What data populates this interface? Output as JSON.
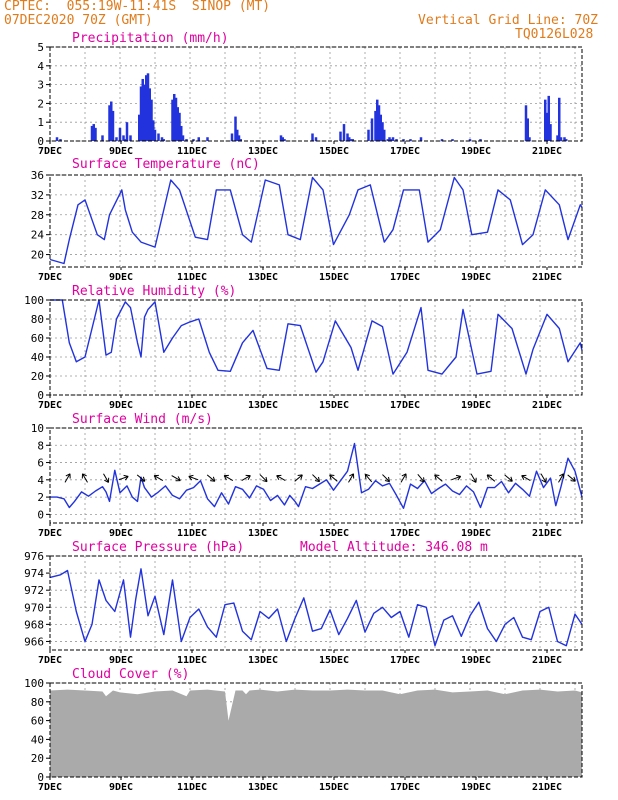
{
  "header": {
    "line1": "CPTEC:  055:19W-11:41S  SINOP (MT)",
    "line2": "07DEC2020 70Z (GMT)",
    "right1": "Vertical Grid Line: 70Z",
    "right2": "TQ0126L028"
  },
  "colors": {
    "header": "#e07b1c",
    "title": "#e000a0",
    "series": "#2233dd",
    "cloud": "#aaaaaa",
    "grid": "#999999",
    "arrow": "#000000"
  },
  "date_labels": [
    "7DEC",
    "9DEC",
    "11DEC",
    "13DEC",
    "15DEC",
    "17DEC",
    "19DEC",
    "21DEC"
  ],
  "chart_data": [
    {
      "id": "precip",
      "type": "bar",
      "title": "Precipitation (mm/h)",
      "ylim": [
        0,
        5
      ],
      "yticks": [
        0,
        1,
        2,
        3,
        4,
        5
      ],
      "xlim": [
        0,
        15.2
      ],
      "x": [
        0.2,
        0.3,
        1.2,
        1.25,
        1.3,
        1.5,
        1.7,
        1.75,
        1.8,
        1.9,
        2.0,
        2.1,
        2.15,
        2.2,
        2.3,
        2.55,
        2.6,
        2.65,
        2.7,
        2.75,
        2.8,
        2.85,
        2.9,
        2.95,
        3.0,
        3.1,
        3.2,
        3.25,
        3.5,
        3.55,
        3.6,
        3.65,
        3.7,
        3.75,
        3.8,
        3.9,
        4.1,
        4.25,
        4.5,
        5.2,
        5.3,
        5.35,
        5.4,
        5.45,
        6.6,
        6.65,
        6.7,
        7.5,
        7.6,
        8.3,
        8.4,
        8.5,
        8.55,
        8.6,
        8.65,
        9.1,
        9.2,
        9.3,
        9.35,
        9.4,
        9.45,
        9.5,
        9.55,
        9.65,
        9.7,
        9.75,
        9.8,
        9.9,
        10.1,
        10.3,
        10.6,
        11.2,
        11.5,
        12.0,
        12.3,
        13.6,
        13.65,
        13.7,
        14.15,
        14.2,
        14.25,
        14.3,
        14.5,
        14.55,
        14.6,
        14.7,
        14.75
      ],
      "values": [
        0.2,
        0.1,
        0.8,
        0.9,
        0.7,
        0.3,
        1.9,
        2.1,
        1.6,
        0.2,
        0.7,
        0.3,
        0.1,
        1.0,
        0.3,
        1.4,
        2.9,
        3.3,
        3.0,
        3.5,
        3.6,
        2.8,
        2.2,
        1.1,
        0.6,
        0.4,
        0.2,
        0.1,
        2.2,
        2.5,
        2.3,
        1.8,
        1.5,
        0.8,
        0.3,
        0.1,
        0.1,
        0.2,
        0.2,
        0.4,
        1.3,
        0.6,
        0.3,
        0.1,
        0.3,
        0.2,
        0.1,
        0.4,
        0.2,
        0.5,
        0.9,
        0.4,
        0.2,
        0.1,
        0.1,
        0.6,
        1.2,
        1.6,
        2.2,
        1.9,
        1.4,
        1.0,
        0.6,
        0.1,
        0.2,
        0.1,
        0.2,
        0.1,
        0.1,
        0.1,
        0.2,
        0.1,
        0.1,
        0.1,
        0.1,
        1.9,
        1.2,
        0.2,
        2.2,
        1.5,
        2.4,
        0.9,
        0.3,
        2.3,
        0.2,
        0.2,
        0.1
      ]
    },
    {
      "id": "temp",
      "type": "line",
      "title": "Surface Temperature (nC)",
      "ylim": [
        17.5,
        36
      ],
      "yticks": [
        20,
        24,
        28,
        32,
        36
      ],
      "xlim": [
        0,
        15.2
      ],
      "x": [
        0,
        0.4,
        0.55,
        0.8,
        1.0,
        1.35,
        1.55,
        1.7,
        2.05,
        2.15,
        2.35,
        2.6,
        3.0,
        3.45,
        3.7,
        4.15,
        4.5,
        4.75,
        5.15,
        5.5,
        5.75,
        6.15,
        6.55,
        6.8,
        7.15,
        7.5,
        7.8,
        8.1,
        8.55,
        8.8,
        9.15,
        9.55,
        9.8,
        10.1,
        10.55,
        10.8,
        11.15,
        11.55,
        11.8,
        12.05,
        12.5,
        12.8,
        13.15,
        13.5,
        13.8,
        14.15,
        14.55,
        14.8,
        15.15,
        15.2
      ],
      "values": [
        19,
        18.2,
        23,
        30,
        31,
        24,
        23,
        28,
        33,
        29,
        24.5,
        22.5,
        21.5,
        35,
        33,
        23.5,
        23,
        33,
        33,
        24,
        22.5,
        35,
        34,
        24,
        23,
        35.5,
        33,
        22,
        28,
        33,
        34,
        22.5,
        25,
        33,
        33,
        22.5,
        25,
        35.5,
        33,
        24,
        24.5,
        33,
        31,
        22,
        24,
        33,
        30,
        23,
        30,
        29.5
      ]
    },
    {
      "id": "rh",
      "type": "line",
      "title": "Relative Humidity (%)",
      "ylim": [
        0,
        100
      ],
      "yticks": [
        0,
        20,
        40,
        60,
        80,
        100
      ],
      "xlim": [
        0,
        15.2
      ],
      "x": [
        0,
        0.35,
        0.55,
        0.75,
        1.0,
        1.4,
        1.6,
        1.75,
        1.9,
        2.15,
        2.3,
        2.5,
        2.6,
        2.7,
        2.8,
        3.0,
        3.25,
        3.5,
        3.75,
        4.0,
        4.25,
        4.55,
        4.8,
        5.15,
        5.5,
        5.8,
        6.2,
        6.55,
        6.8,
        7.15,
        7.6,
        7.8,
        8.15,
        8.6,
        8.8,
        9.2,
        9.5,
        9.8,
        10.2,
        10.6,
        10.8,
        11.2,
        11.6,
        11.8,
        12.2,
        12.6,
        12.8,
        13.2,
        13.6,
        13.8,
        14.2,
        14.55,
        14.8,
        15.15,
        15.2
      ],
      "values": [
        100,
        100,
        55,
        35,
        40,
        100,
        42,
        45,
        80,
        98,
        92,
        55,
        40,
        82,
        90,
        98,
        45,
        60,
        73,
        77,
        80,
        45,
        26,
        25,
        55,
        68,
        28,
        26,
        75,
        73,
        24,
        35,
        78,
        50,
        26,
        78,
        72,
        22,
        45,
        92,
        26,
        22,
        40,
        90,
        22,
        25,
        85,
        70,
        22,
        48,
        85,
        70,
        35,
        55,
        47
      ]
    },
    {
      "id": "wind",
      "type": "line",
      "title": "Surface Wind (m/s)",
      "ylim": [
        -1,
        10
      ],
      "yticks": [
        0,
        2,
        4,
        6,
        8,
        10
      ],
      "xlim": [
        0,
        15.2
      ],
      "x": [
        0,
        0.2,
        0.4,
        0.55,
        0.7,
        0.9,
        1.1,
        1.3,
        1.5,
        1.6,
        1.7,
        1.85,
        2.0,
        2.2,
        2.35,
        2.5,
        2.6,
        2.7,
        2.9,
        3.1,
        3.3,
        3.5,
        3.7,
        3.9,
        4.1,
        4.3,
        4.5,
        4.7,
        4.9,
        5.1,
        5.3,
        5.5,
        5.7,
        5.9,
        6.1,
        6.3,
        6.5,
        6.7,
        6.85,
        7.0,
        7.1,
        7.3,
        7.5,
        7.7,
        7.9,
        8.1,
        8.3,
        8.5,
        8.7,
        8.9,
        9.1,
        9.3,
        9.5,
        9.7,
        9.9,
        10.1,
        10.3,
        10.5,
        10.7,
        10.9,
        11.1,
        11.3,
        11.5,
        11.7,
        11.9,
        12.1,
        12.3,
        12.5,
        12.7,
        12.9,
        13.1,
        13.3,
        13.5,
        13.7,
        13.9,
        14.1,
        14.3,
        14.45,
        14.6,
        14.8,
        15.0,
        15.2
      ],
      "values": [
        2,
        2,
        1.8,
        0.8,
        1.5,
        2.6,
        2.1,
        2.7,
        3.2,
        2.6,
        1.5,
        5.1,
        2.5,
        3.3,
        2.0,
        1.5,
        4.3,
        3.1,
        2.0,
        2.6,
        3.3,
        2.2,
        1.8,
        2.8,
        3.1,
        3.9,
        1.8,
        0.9,
        2.5,
        1.2,
        3.2,
        2.9,
        1.9,
        3.3,
        2.9,
        1.6,
        2.2,
        1.1,
        2.2,
        1.5,
        0.9,
        3.2,
        3.0,
        3.5,
        4.0,
        2.8,
        3.9,
        5.0,
        8.2,
        2.5,
        2.9,
        3.9,
        3.3,
        3.6,
        2.2,
        0.7,
        3.5,
        3.0,
        3.9,
        2.4,
        3.0,
        3.5,
        2.7,
        2.3,
        3.3,
        2.6,
        0.8,
        3.1,
        3.1,
        3.8,
        2.5,
        3.6,
        2.9,
        2.1,
        5.0,
        3.1,
        4.2,
        1.0,
        3.2,
        6.5,
        5.0,
        2.0
      ]
    },
    {
      "id": "pres",
      "type": "line",
      "title": "Surface Pressure (hPa)",
      "annotation": "Model Altitude: 346.08 m",
      "ylim": [
        965,
        976
      ],
      "yticks": [
        966,
        968,
        970,
        972,
        974,
        976
      ],
      "xlim": [
        0,
        15.2
      ],
      "x": [
        0,
        0.3,
        0.5,
        0.75,
        1.0,
        1.2,
        1.4,
        1.6,
        1.85,
        2.1,
        2.3,
        2.45,
        2.6,
        2.8,
        3.0,
        3.25,
        3.5,
        3.75,
        4.0,
        4.25,
        4.5,
        4.75,
        5.0,
        5.25,
        5.5,
        5.75,
        6.0,
        6.25,
        6.5,
        6.75,
        7.0,
        7.25,
        7.5,
        7.75,
        8.0,
        8.25,
        8.5,
        8.75,
        9.0,
        9.25,
        9.5,
        9.75,
        10.0,
        10.25,
        10.5,
        10.75,
        11.0,
        11.25,
        11.5,
        11.75,
        12.0,
        12.25,
        12.5,
        12.75,
        13.0,
        13.25,
        13.5,
        13.75,
        14.0,
        14.25,
        14.5,
        14.75,
        15.0,
        15.2
      ],
      "values": [
        973.5,
        973.8,
        974.3,
        969.5,
        966,
        968,
        973.2,
        970.8,
        969.5,
        973.2,
        966.5,
        971,
        974.5,
        969,
        971.3,
        966.8,
        973.2,
        966,
        968.8,
        969.8,
        967.7,
        966.5,
        970.3,
        970.5,
        967.2,
        966.2,
        969.5,
        968.7,
        969.8,
        966,
        968.7,
        971.1,
        967.2,
        967.5,
        969.7,
        966.8,
        968.7,
        970.8,
        967.1,
        969.3,
        970.0,
        968.8,
        969.5,
        966.5,
        970.3,
        970.0,
        965.5,
        968.5,
        969.0,
        966.6,
        969.0,
        970.6,
        967.5,
        966.0,
        968.0,
        968.8,
        966.5,
        966.2,
        969.5,
        970.0,
        966.0,
        965.5,
        969.2,
        968.0
      ]
    },
    {
      "id": "cloud",
      "type": "area",
      "title": "Cloud Cover (%)",
      "ylim": [
        0,
        100
      ],
      "yticks": [
        0,
        20,
        40,
        60,
        80,
        100
      ],
      "xlim": [
        0,
        15.2
      ],
      "x": [
        0,
        0.5,
        1.0,
        1.5,
        1.6,
        1.8,
        2.0,
        2.5,
        3.0,
        3.5,
        3.9,
        4.0,
        4.5,
        5.0,
        5.1,
        5.3,
        5.5,
        5.6,
        5.7,
        6.0,
        6.5,
        7.0,
        7.5,
        8.0,
        8.5,
        9.0,
        9.5,
        10.0,
        10.5,
        11.0,
        11.5,
        12.0,
        12.5,
        13.0,
        13.5,
        14.0,
        14.5,
        15.0,
        15.2
      ],
      "values": [
        92,
        93,
        92,
        91,
        86,
        92,
        90,
        88,
        91,
        92,
        86,
        92,
        93,
        91,
        60,
        92,
        92,
        88,
        92,
        93,
        91,
        93,
        92,
        92,
        93,
        92,
        92,
        88,
        92,
        93,
        90,
        91,
        92,
        88,
        92,
        93,
        91,
        92,
        90
      ]
    }
  ],
  "wind_arrows": {
    "x": [
      0.5,
      1.0,
      1.6,
      2.1,
      2.6,
      3.1,
      3.6,
      4.1,
      4.6,
      5.1,
      5.6,
      6.1,
      6.6,
      7.1,
      7.6,
      8.1,
      8.6,
      9.1,
      9.6,
      10.1,
      10.6,
      11.1,
      11.6,
      12.1,
      12.6,
      13.1,
      13.6,
      14.1,
      14.6,
      14.9
    ],
    "angle": [
      -60,
      -120,
      60,
      -20,
      40,
      -150,
      30,
      -160,
      40,
      -150,
      -30,
      45,
      -150,
      -40,
      45,
      -140,
      -60,
      -130,
      45,
      -60,
      50,
      -140,
      -20,
      60,
      -140,
      40,
      -150,
      60,
      -60,
      40
    ]
  }
}
